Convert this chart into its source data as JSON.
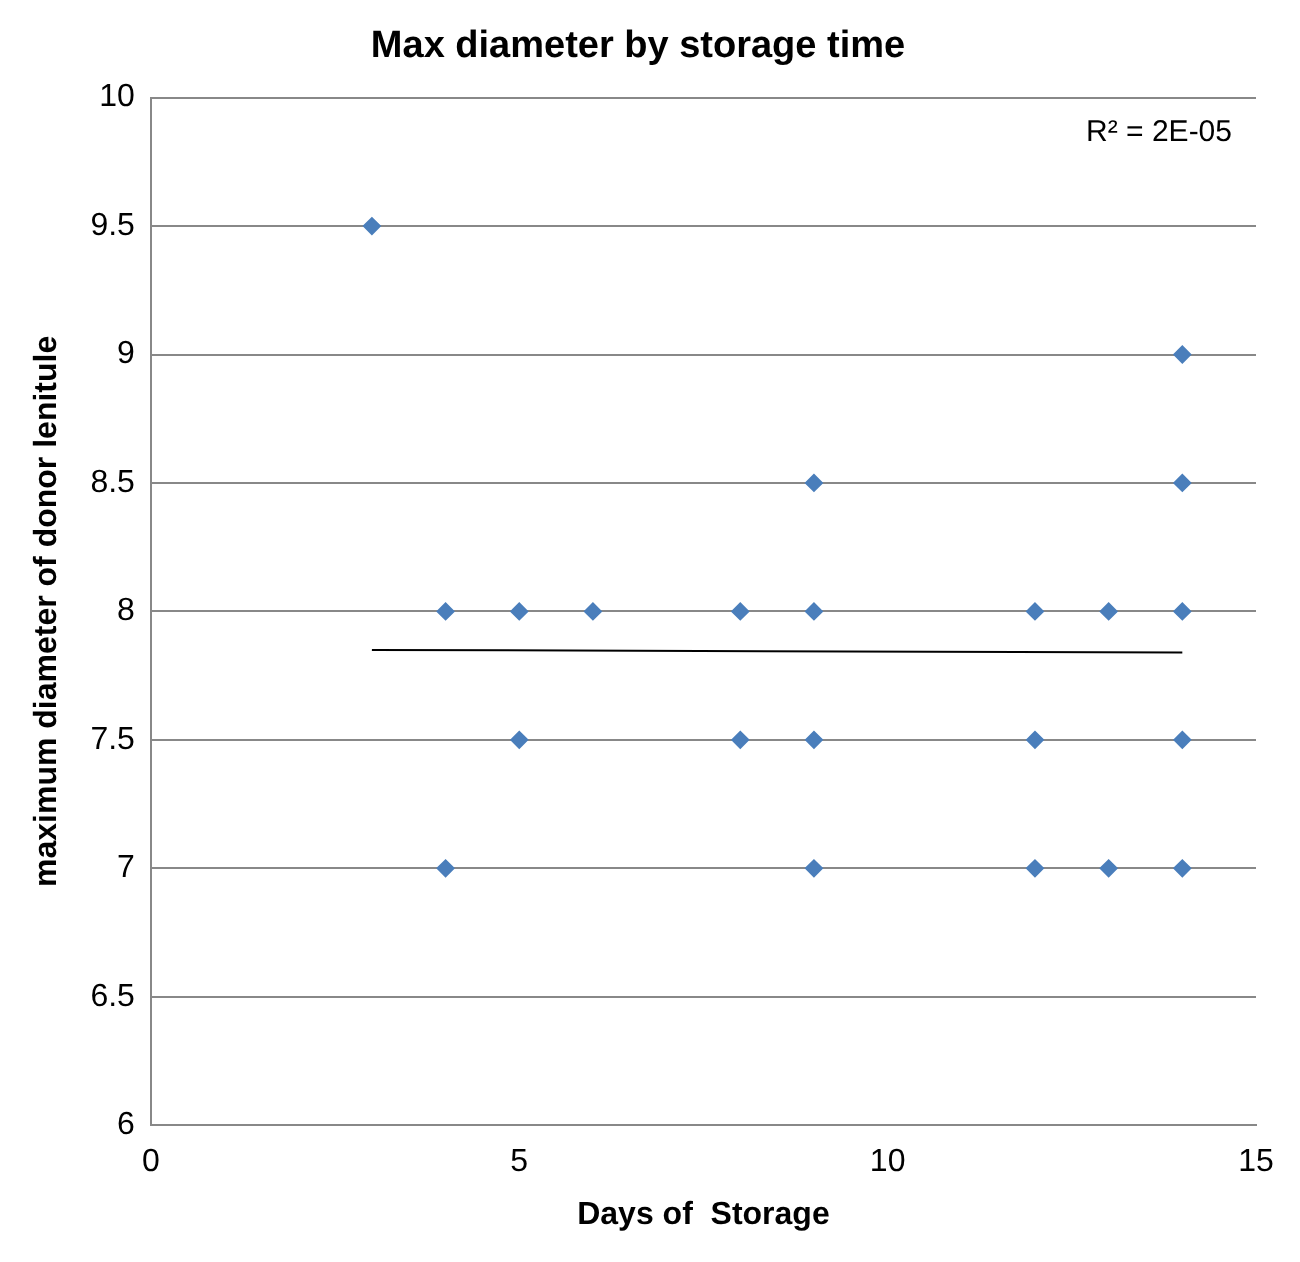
{
  "chart_data": {
    "type": "scatter",
    "title": "Max diameter by storage time",
    "xlabel": "Days of  Storage",
    "ylabel": "maximum diameter of donor lenitule",
    "series": [
      {
        "color": "#4a7ebb",
        "marker": "diamond",
        "x": [
          3,
          4,
          4,
          5,
          5,
          6,
          8,
          8,
          9,
          9,
          9,
          9,
          12,
          12,
          12,
          13,
          13,
          14,
          14,
          14,
          14,
          14
        ],
        "values": [
          9.5,
          8,
          7,
          8,
          7.5,
          8,
          8,
          7.5,
          8.5,
          8,
          7.5,
          7,
          8,
          7.5,
          7,
          8,
          7,
          9,
          8.5,
          8,
          7.5,
          7
        ]
      },
      {
        "type": "line",
        "color": "#000000",
        "marker": "none",
        "x": [
          3,
          14
        ],
        "values": [
          7.85,
          7.84
        ]
      }
    ],
    "xlim": [
      0,
      15
    ],
    "xticks": [
      0,
      5,
      10,
      15
    ],
    "ylim": [
      6,
      10
    ],
    "yticks": [
      6,
      6.5,
      7,
      7.5,
      8,
      8.5,
      9,
      9.5,
      10
    ],
    "grid": "y",
    "legend": false,
    "annotations": [
      "R² = 2E-05"
    ]
  }
}
